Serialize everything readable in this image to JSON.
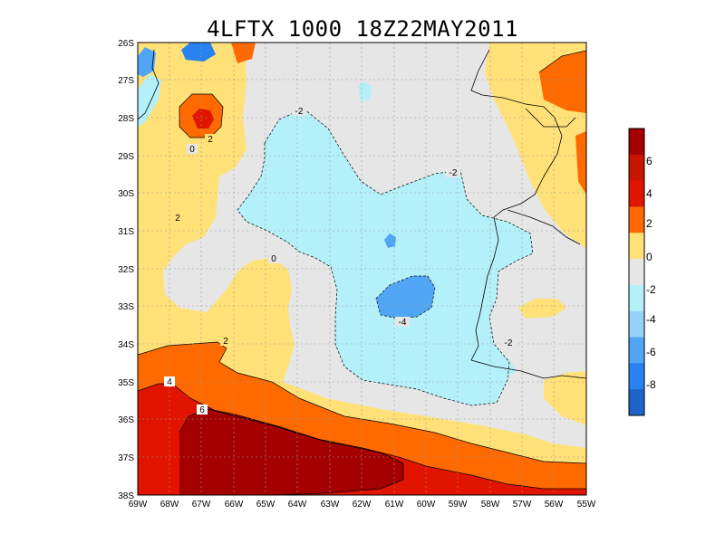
{
  "title": "4LFTX 1000 18Z22MAY2011",
  "map": {
    "lat_labels": [
      "26S",
      "27S",
      "28S",
      "29S",
      "30S",
      "31S",
      "32S",
      "33S",
      "34S",
      "35S",
      "36S",
      "37S",
      "38S"
    ],
    "lon_labels": [
      "69W",
      "68W",
      "67W",
      "66W",
      "65W",
      "64W",
      "63W",
      "62W",
      "61W",
      "60W",
      "59W",
      "58W",
      "57W",
      "56W",
      "55W"
    ],
    "contour_labels": [
      "-2",
      "-2",
      "-2",
      "-2",
      "-4",
      "0",
      "0",
      "2",
      "2",
      "2",
      "4",
      "6"
    ],
    "shading_colors": {
      "le_-8": "#1e64c8",
      "-8_-6": "#2882f0",
      "-6_-4": "#50a5f5",
      "-4_-2": "#96d2fa",
      "-2_0": "#b4f0fa",
      "0": "#e6e6e6",
      "0_2": "#ffe178",
      "2_4": "#ffa000",
      "4_6": "#e11400",
      "ge_6": "#a50000"
    }
  },
  "colorbar": {
    "labels": [
      "6",
      "4",
      "2",
      "0",
      "-2",
      "-4",
      "-6",
      "-8"
    ],
    "colors": [
      "#a50000",
      "#c81400",
      "#e11400",
      "#ff6a00",
      "#ffe178",
      "#e6e6e6",
      "#b4f0fa",
      "#96d2fa",
      "#50a5f5",
      "#2882f0",
      "#1e64c8"
    ]
  }
}
